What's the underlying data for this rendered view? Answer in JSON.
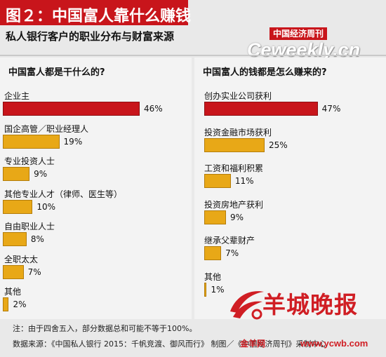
{
  "header": {
    "title": "图２：中国富人靠什么赚钱",
    "subtitle": "私人银行客户的职业分布与财富来源"
  },
  "watermarks": {
    "magazine": "中国经济周刊",
    "site": "Ceweekly.cn",
    "paper_name": "羊城晚报",
    "paper_site": "金羊网",
    "paper_url": "www.ycwb.com"
  },
  "colors": {
    "title_bg": "#c8151b",
    "highlight_bar": "#c8151b",
    "normal_bar": "#e8a817",
    "background": "#e9e9e9"
  },
  "chart_data": [
    {
      "type": "bar",
      "orientation": "horizontal",
      "title": "中国富人都是干什么的?",
      "unit": "%",
      "categories": [
        "企业主",
        "国企高管／职业经理人",
        "专业投资人士",
        "其他专业人才（律师、医生等）",
        "自由职业人士",
        "全职太太",
        "其他"
      ],
      "values": [
        46,
        19,
        9,
        10,
        8,
        7,
        2
      ],
      "value_labels": [
        "46%",
        "19%",
        "9%",
        "10%",
        "8%",
        "7%",
        "2%"
      ],
      "highlight_index": 0,
      "xlim": [
        0,
        50
      ]
    },
    {
      "type": "bar",
      "orientation": "horizontal",
      "title": "中国富人的钱都是怎么赚来的?",
      "unit": "%",
      "categories": [
        "创办实业公司获利",
        "投资金融市场获利",
        "工资和福利积累",
        "投资房地产获利",
        "继承父辈财产",
        "其他"
      ],
      "values": [
        47,
        25,
        11,
        9,
        7,
        1
      ],
      "value_labels": [
        "47%",
        "25%",
        "11%",
        "9%",
        "7%",
        "1%"
      ],
      "highlight_index": 0,
      "xlim": [
        0,
        50
      ]
    }
  ],
  "footnotes": {
    "note": "注：由于四舍五入，部分数据总和可能不等于100%。",
    "source": "数据来源：《中国私人银行 2015：千帆竞渡、御风而行》  制图／《中国经济周刊》采制中心"
  }
}
